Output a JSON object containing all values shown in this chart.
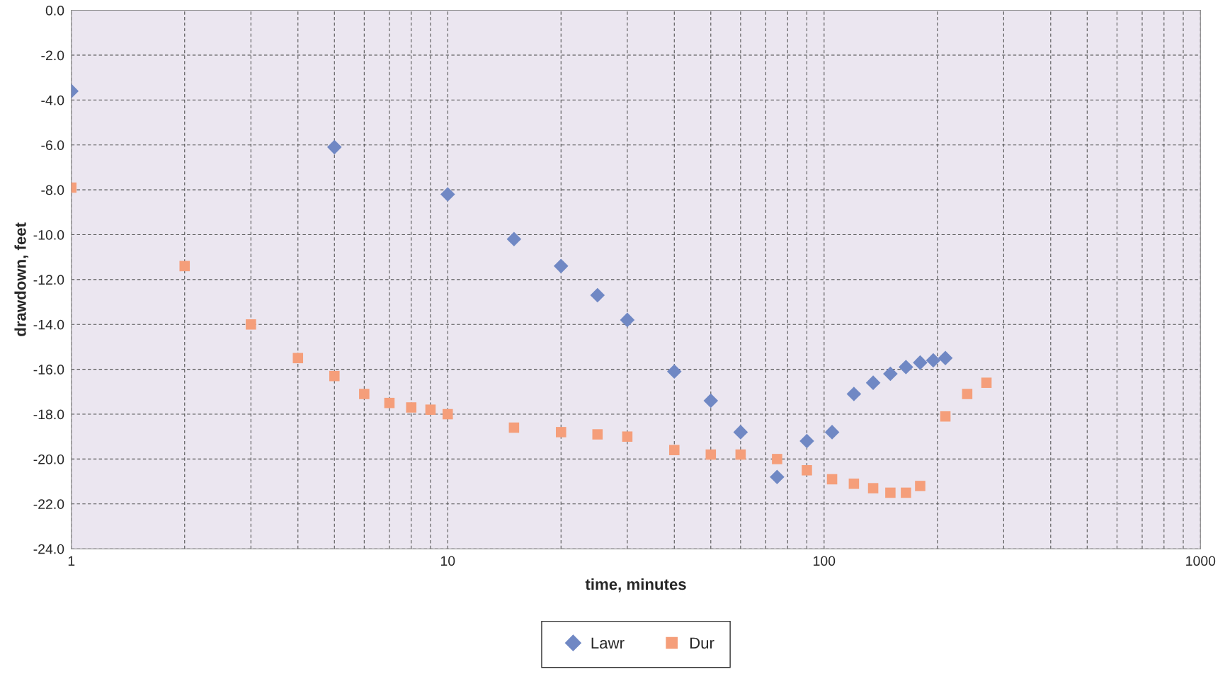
{
  "chart_data": {
    "type": "scatter",
    "xlabel": "time, minutes",
    "ylabel": "drawdown, feet",
    "log": "x",
    "grid": true,
    "legend": "bottom",
    "xlim": [
      1,
      1000
    ],
    "xticks": [
      1,
      10,
      100,
      1000
    ],
    "ylim": [
      -24,
      0
    ],
    "yticks": [
      {
        "value": 0,
        "label": "0.0"
      },
      {
        "value": -2,
        "label": "-2.0"
      },
      {
        "value": -4,
        "label": "-4.0"
      },
      {
        "value": -6,
        "label": "-6.0"
      },
      {
        "value": -8,
        "label": "-8.0"
      },
      {
        "value": -10,
        "label": "-10.0"
      },
      {
        "value": -12,
        "label": "-12.0"
      },
      {
        "value": -14,
        "label": "-14.0"
      },
      {
        "value": -16,
        "label": "-16.0"
      },
      {
        "value": -18,
        "label": "-18.0"
      },
      {
        "value": -20,
        "label": "-20.0"
      },
      {
        "value": -22,
        "label": "-22.0"
      },
      {
        "value": -24,
        "label": "-24.0"
      }
    ],
    "series": [
      {
        "name": "Lawr",
        "color": "#7088c4",
        "marker": "diamond",
        "x": [
          1,
          5,
          10,
          15,
          20,
          25,
          30,
          40,
          50,
          60,
          75,
          90,
          105,
          120,
          135,
          150,
          165,
          180,
          195,
          210
        ],
        "values": [
          -3.6,
          -6.1,
          -8.2,
          -10.2,
          -11.4,
          -12.7,
          -13.8,
          -16.1,
          -17.4,
          -18.8,
          -20.8,
          -19.2,
          -18.8,
          -17.1,
          -16.6,
          -16.2,
          -15.9,
          -15.7,
          -15.6,
          -15.5
        ]
      },
      {
        "name": "Dur",
        "color": "#f59e7a",
        "marker": "square",
        "x": [
          1,
          2,
          3,
          4,
          5,
          6,
          7,
          8,
          9,
          10,
          15,
          20,
          25,
          30,
          40,
          50,
          60,
          75,
          90,
          105,
          120,
          135,
          150,
          165,
          180,
          210,
          240,
          270
        ],
        "values": [
          -7.9,
          -11.4,
          -14.0,
          -15.5,
          -16.3,
          -17.1,
          -17.5,
          -17.7,
          -17.8,
          -18.0,
          -18.6,
          -18.8,
          -18.9,
          -19.0,
          -19.6,
          -19.8,
          -19.8,
          -20.0,
          -20.5,
          -20.9,
          -21.1,
          -21.3,
          -21.5,
          -21.5,
          -21.2,
          -18.1,
          -17.1,
          -16.6
        ]
      }
    ]
  }
}
